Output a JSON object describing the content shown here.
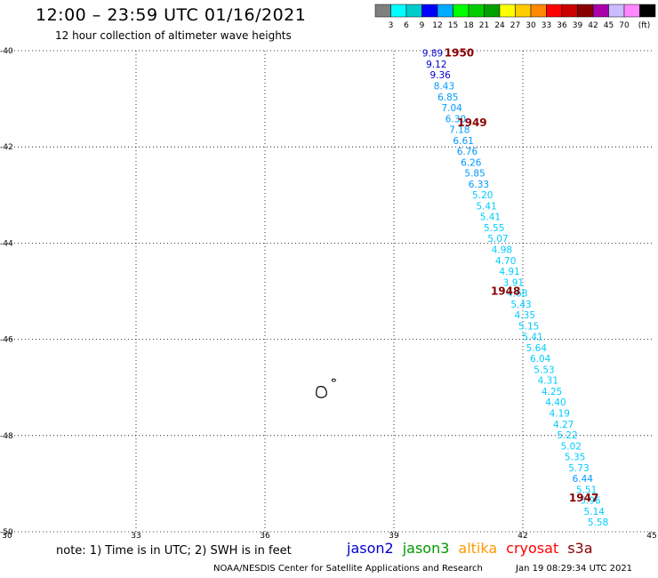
{
  "header": {
    "title": "12:00 – 23:59 UTC 01/16/2021",
    "subtitle": "12 hour collection of altimeter wave heights"
  },
  "legend": {
    "colors": [
      "#808080",
      "#00ffff",
      "#00cccc",
      "#0000ff",
      "#00aaff",
      "#00ff00",
      "#00cc00",
      "#00a000",
      "#ffff00",
      "#ffcc00",
      "#ff8800",
      "#ff0000",
      "#cc0000",
      "#880000",
      "#aa00aa",
      "#ccbbff",
      "#ff88ff",
      "#000000"
    ],
    "ticks": [
      "3",
      "6",
      "9",
      "12",
      "15",
      "18",
      "21",
      "24",
      "27",
      "30",
      "33",
      "36",
      "39",
      "42",
      "45",
      "70"
    ],
    "unit": "(ft)"
  },
  "axes": {
    "lat_labels": [
      "-40",
      "-42",
      "-44",
      "-46",
      "-48",
      "-50"
    ],
    "lon_labels": [
      "30",
      "33",
      "36",
      "39",
      "42",
      "45"
    ],
    "lat_range": [
      -50,
      -40
    ],
    "lon_range": [
      30,
      45
    ]
  },
  "track": {
    "values": [
      "9.89",
      "9.12",
      "9.36",
      "8.43",
      "6.85",
      "7.04",
      "6.30",
      "7.18",
      "6.61",
      "6.76",
      "6.26",
      "5.85",
      "6.33",
      "5.20",
      "5.41",
      "5.41",
      "5.55",
      "5.07",
      "4.98",
      "4.70",
      "4.91",
      "3.91",
      "4.68",
      "5.43",
      "4.35",
      "5.15",
      "5.41",
      "5.64",
      "6.04",
      "5.53",
      "4.31",
      "4.25",
      "4.40",
      "4.19",
      "4.27",
      "5.22",
      "5.02",
      "5.35",
      "5.73",
      "6.44",
      "5.51",
      "5.96",
      "5.14",
      "5.58"
    ],
    "colors": [
      "#0000cc",
      "#0000cc",
      "#0000cc",
      "#0099ff",
      "#0099ff",
      "#0099ff",
      "#0099ff",
      "#0099ff",
      "#0099ff",
      "#0099ff",
      "#0099ff",
      "#0099ff",
      "#0099ff",
      "#00ccff",
      "#00ccff",
      "#00ccff",
      "#00ccff",
      "#00ccff",
      "#00ccff",
      "#00ccff",
      "#00ccff",
      "#00ccff",
      "#00ccff",
      "#00ccff",
      "#00ccff",
      "#00ccff",
      "#00ccff",
      "#00ccff",
      "#00ccff",
      "#00ccff",
      "#00ccff",
      "#00ccff",
      "#00ccff",
      "#00ccff",
      "#00ccff",
      "#00ccff",
      "#00ccff",
      "#00ccff",
      "#00ccff",
      "#0099ff",
      "#00ccff",
      "#00ccff",
      "#00ccff",
      "#00ccff"
    ],
    "times": [
      {
        "label": "1950",
        "lat": -40.05,
        "lon": 40.52
      },
      {
        "label": "1949",
        "lat": -41.5,
        "lon": 40.82
      },
      {
        "label": "1948",
        "lat": -45.0,
        "lon": 41.6
      },
      {
        "label": "1947",
        "lat": -49.3,
        "lon": 43.42
      }
    ],
    "time_color": "#880000"
  },
  "islands": [
    {
      "name": "island-large",
      "lat": -47.1,
      "lon": 37.3
    },
    {
      "name": "island-small",
      "lat": -46.85,
      "lon": 37.6
    }
  ],
  "note": "note: 1) Time is in UTC; 2) SWH is in feet",
  "satellites": [
    {
      "name": "jason2",
      "color": "#0000cc"
    },
    {
      "name": "jason3",
      "color": "#009900"
    },
    {
      "name": "altika",
      "color": "#ff9900"
    },
    {
      "name": "cryosat",
      "color": "#ff0000"
    },
    {
      "name": "s3a",
      "color": "#880000"
    }
  ],
  "credit": "NOAA/NESDIS Center for Satellite Applications and Research",
  "credit_time": "Jan 19 08:29:34 UTC 2021"
}
